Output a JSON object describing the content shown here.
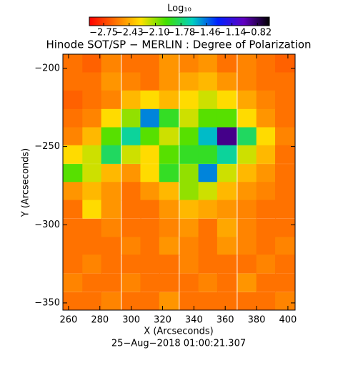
{
  "chart_data": {
    "type": "heatmap",
    "title": "Hinode SOT/SP − MERLIN : Degree of Polarization",
    "colorbar_label": "Log₁₀",
    "xlabel": "X (Arcseconds)",
    "ylabel": "Y (Arcseconds)",
    "footer": "25−Aug−2018 01:00:21.307",
    "xlim": [
      256.4,
      404.6
    ],
    "ylim": [
      -354.6,
      -190.9
    ],
    "xticks": [
      260,
      280,
      300,
      320,
      340,
      360,
      380,
      400
    ],
    "yticks": [
      {
        "value": -200,
        "label": "−200"
      },
      {
        "value": -250,
        "label": "−250"
      },
      {
        "value": -300,
        "label": "−300"
      },
      {
        "value": -350,
        "label": "−350"
      }
    ],
    "clim": [
      -2.93,
      -0.67
    ],
    "colormap": [
      "#ff0000",
      "#ff7000",
      "#ffe000",
      "#40e000",
      "#00d0c0",
      "#0020ff",
      "#6000c0",
      "#000000"
    ],
    "cticks": [
      {
        "value": -2.75,
        "label": "−2.75"
      },
      {
        "value": -2.43,
        "label": "−2.43"
      },
      {
        "value": -2.1,
        "label": "−2.10"
      },
      {
        "value": -1.78,
        "label": "−1.78"
      },
      {
        "value": -1.46,
        "label": "−1.46"
      },
      {
        "value": -1.14,
        "label": "−1.14"
      },
      {
        "value": -0.82,
        "label": "−0.82"
      }
    ],
    "x": [
      262.6,
      275,
      287,
      300,
      312,
      324,
      337,
      349,
      361,
      374,
      386,
      398
    ],
    "y": [
      -196.7,
      -208.4,
      -220,
      -231.8,
      -243.5,
      -255,
      -267,
      -278.5,
      -290,
      -302,
      -313.7,
      -325,
      -337,
      -349
    ],
    "z": [
      [
        -2.6,
        -2.65,
        -2.55,
        -2.6,
        -2.6,
        -2.5,
        -2.55,
        -2.5,
        -2.6,
        -2.55,
        -2.6,
        -2.65
      ],
      [
        -2.6,
        -2.6,
        -2.5,
        -2.55,
        -2.6,
        -2.5,
        -2.45,
        -2.4,
        -2.5,
        -2.55,
        -2.6,
        -2.6
      ],
      [
        -2.65,
        -2.6,
        -2.55,
        -2.4,
        -2.3,
        -2.4,
        -2.3,
        -2.2,
        -2.3,
        -2.45,
        -2.55,
        -2.6
      ],
      [
        -2.6,
        -2.55,
        -2.3,
        -2.1,
        -1.5,
        -1.9,
        -2.2,
        -2.0,
        -2.0,
        -2.3,
        -2.5,
        -2.6
      ],
      [
        -2.55,
        -2.4,
        -2.0,
        -1.7,
        -2.0,
        -2.2,
        -2.0,
        -1.6,
        -0.9,
        -1.8,
        -2.3,
        -2.55
      ],
      [
        -2.3,
        -2.2,
        -1.8,
        -2.2,
        -2.3,
        -2.0,
        -1.9,
        -1.9,
        -1.7,
        -2.2,
        -2.4,
        -2.6
      ],
      [
        -2.0,
        -2.2,
        -2.4,
        -2.5,
        -2.3,
        -1.9,
        -2.1,
        -1.5,
        -2.2,
        -2.4,
        -2.5,
        -2.6
      ],
      [
        -2.5,
        -2.4,
        -2.5,
        -2.6,
        -2.5,
        -2.4,
        -2.1,
        -2.2,
        -2.4,
        -2.5,
        -2.55,
        -2.6
      ],
      [
        -2.6,
        -2.3,
        -2.5,
        -2.6,
        -2.6,
        -2.5,
        -2.4,
        -2.45,
        -2.5,
        -2.55,
        -2.6,
        -2.6
      ],
      [
        -2.6,
        -2.6,
        -2.55,
        -2.6,
        -2.6,
        -2.55,
        -2.5,
        -2.6,
        -2.45,
        -2.55,
        -2.6,
        -2.6
      ],
      [
        -2.6,
        -2.6,
        -2.6,
        -2.55,
        -2.6,
        -2.5,
        -2.55,
        -2.6,
        -2.5,
        -2.55,
        -2.6,
        -2.55
      ],
      [
        -2.6,
        -2.55,
        -2.6,
        -2.6,
        -2.6,
        -2.6,
        -2.55,
        -2.6,
        -2.6,
        -2.6,
        -2.55,
        -2.6
      ],
      [
        -2.55,
        -2.6,
        -2.6,
        -2.55,
        -2.6,
        -2.6,
        -2.6,
        -2.55,
        -2.6,
        -2.5,
        -2.6,
        -2.6
      ],
      [
        -2.6,
        -2.6,
        -2.55,
        -2.6,
        -2.6,
        -2.5,
        -2.6,
        -2.6,
        -2.6,
        -2.6,
        -2.6,
        -2.55
      ]
    ]
  }
}
